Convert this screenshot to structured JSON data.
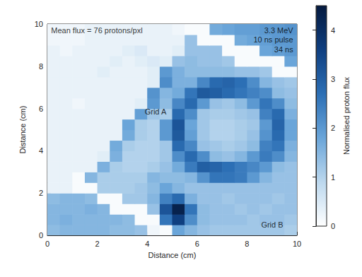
{
  "chart_data": {
    "type": "heatmap",
    "xlabel": "Distance (cm)",
    "ylabel": "Distance (cm)",
    "xlim": [
      0,
      10
    ],
    "ylim": [
      0,
      10
    ],
    "xticks": [
      0,
      2,
      4,
      6,
      8,
      10
    ],
    "yticks": [
      0,
      2,
      4,
      6,
      8,
      10
    ],
    "x": [
      0.25,
      0.75,
      1.25,
      1.75,
      2.25,
      2.75,
      3.25,
      3.75,
      4.25,
      4.75,
      5.25,
      5.75,
      6.25,
      6.75,
      7.25,
      7.75,
      8.25,
      8.75,
      9.25,
      9.75
    ],
    "y": [
      0.25,
      0.75,
      1.25,
      1.75,
      2.25,
      2.75,
      3.25,
      3.75,
      4.25,
      4.75,
      5.25,
      5.75,
      6.25,
      6.75,
      7.25,
      7.75,
      8.25,
      8.75,
      9.25,
      9.75
    ],
    "cells": [
      [
        1.4,
        1.5,
        1.5,
        1.5,
        1.5,
        1.4,
        1.4,
        1.3,
        0.2,
        0.1,
        1.8,
        1.5,
        1.3,
        1.2,
        1.2,
        1.2,
        1.2,
        1.2,
        1.2,
        1.1
      ],
      [
        1.5,
        1.6,
        1.5,
        1.5,
        1.5,
        1.5,
        1.4,
        0.1,
        0.1,
        2.6,
        3.6,
        2.2,
        1.4,
        1.3,
        1.3,
        1.3,
        1.2,
        1.3,
        1.3,
        1.2
      ],
      [
        1.5,
        1.5,
        1.5,
        1.6,
        1.5,
        0.1,
        0.1,
        0.1,
        1.3,
        3.2,
        4.3,
        2.6,
        1.4,
        1.3,
        1.3,
        1.2,
        1.3,
        1.2,
        1.3,
        1.3
      ],
      [
        1.4,
        1.5,
        1.5,
        1.4,
        0.1,
        0.1,
        1.2,
        1.2,
        1.5,
        2.4,
        2.8,
        1.6,
        1.3,
        1.3,
        1.2,
        1.3,
        1.3,
        1.3,
        1.2,
        1.3
      ],
      [
        0.3,
        0.3,
        0.1,
        0.1,
        1.1,
        1.1,
        1.1,
        1.2,
        1.4,
        1.8,
        1.5,
        1.3,
        1.3,
        1.3,
        1.3,
        1.3,
        1.3,
        1.3,
        1.3,
        1.3
      ],
      [
        0.3,
        0.3,
        0.1,
        1.5,
        1.1,
        1.1,
        1.1,
        1.1,
        1.5,
        1.4,
        1.4,
        1.5,
        2.1,
        2.6,
        2.6,
        2.5,
        2.0,
        1.5,
        1.3,
        1.3
      ],
      [
        0.3,
        0.3,
        0.3,
        0.3,
        1.6,
        1.1,
        1.0,
        1.0,
        1.1,
        1.3,
        1.7,
        2.5,
        3.0,
        2.9,
        2.7,
        2.5,
        2.3,
        2.0,
        1.4,
        1.3
      ],
      [
        0.3,
        0.3,
        0.3,
        0.3,
        0.4,
        1.6,
        1.0,
        1.0,
        1.0,
        1.2,
        2.2,
        2.8,
        2.2,
        1.4,
        1.3,
        1.5,
        2.0,
        2.5,
        2.2,
        1.5
      ],
      [
        0.3,
        0.3,
        0.3,
        0.3,
        0.3,
        1.7,
        1.1,
        1.0,
        1.0,
        1.2,
        2.8,
        2.3,
        1.3,
        1.2,
        1.1,
        1.2,
        1.4,
        2.4,
        2.6,
        1.6
      ],
      [
        0.3,
        0.3,
        0.3,
        0.3,
        0.3,
        0.3,
        1.7,
        1.1,
        1.0,
        2.0,
        3.1,
        1.9,
        1.2,
        1.0,
        1.0,
        1.1,
        1.3,
        2.1,
        2.8,
        1.8
      ],
      [
        0.3,
        0.3,
        0.3,
        0.3,
        0.3,
        0.3,
        1.8,
        1.1,
        1.0,
        2.0,
        3.2,
        1.8,
        1.2,
        1.0,
        1.0,
        1.1,
        1.2,
        2.0,
        2.9,
        1.8
      ],
      [
        0.3,
        0.3,
        0.3,
        0.3,
        0.3,
        0.3,
        0.3,
        1.9,
        1.2,
        1.1,
        2.8,
        2.2,
        1.2,
        1.1,
        1.1,
        1.2,
        1.3,
        2.4,
        2.8,
        1.6
      ],
      [
        0.3,
        0.3,
        0.2,
        0.3,
        0.3,
        0.3,
        0.3,
        0.4,
        2.0,
        1.4,
        2.3,
        2.8,
        2.0,
        1.3,
        1.2,
        1.4,
        2.0,
        2.6,
        2.2,
        1.4
      ],
      [
        0.3,
        0.3,
        0.3,
        0.3,
        0.3,
        0.3,
        0.3,
        0.3,
        2.1,
        1.5,
        1.7,
        2.6,
        3.1,
        3.0,
        2.8,
        2.6,
        2.4,
        2.2,
        1.4,
        1.3
      ],
      [
        0.3,
        0.3,
        0.3,
        0.3,
        0.3,
        0.3,
        0.3,
        0.3,
        0.4,
        2.2,
        1.6,
        1.6,
        2.3,
        2.8,
        2.9,
        2.7,
        2.2,
        1.5,
        1.3,
        1.2
      ],
      [
        0.3,
        0.3,
        0.3,
        0.3,
        0.4,
        0.3,
        0.3,
        0.3,
        0.4,
        2.0,
        1.6,
        1.4,
        1.4,
        1.4,
        1.4,
        1.3,
        1.3,
        1.2,
        0.1,
        0.1
      ],
      [
        0.3,
        0.3,
        0.3,
        0.3,
        0.3,
        0.4,
        0.3,
        0.4,
        0.5,
        0.4,
        1.3,
        1.4,
        1.3,
        1.3,
        1.2,
        0.1,
        0.1,
        0.1,
        0.1,
        1.8
      ],
      [
        0.3,
        0.2,
        0.3,
        0.3,
        0.3,
        0.3,
        0.4,
        0.5,
        0.3,
        0.3,
        0.4,
        1.3,
        1.3,
        1.3,
        0.1,
        0.1,
        0.1,
        1.8,
        1.9,
        2.0
      ],
      [
        0.2,
        0.2,
        0.2,
        0.3,
        0.3,
        0.3,
        0.3,
        0.3,
        0.3,
        0.3,
        0.3,
        1.3,
        0.1,
        0.1,
        0.1,
        1.7,
        1.8,
        1.9,
        2.0,
        2.0
      ],
      [
        0.2,
        0.2,
        0.2,
        0.3,
        0.3,
        0.3,
        0.3,
        0.3,
        0.3,
        0.3,
        0.2,
        0.1,
        0.1,
        1.7,
        1.8,
        1.9,
        1.9,
        2.0,
        2.0,
        2.1
      ]
    ],
    "colorbar": {
      "label": "Normalised proton flux",
      "lim": [
        0,
        4.5
      ],
      "ticks": [
        0,
        1,
        2,
        3,
        4
      ]
    },
    "annotations": [
      {
        "text": "Mean flux = 76 protons/pxl",
        "x": 0.15,
        "y": 9.7
      },
      {
        "text": "3.3 MeV",
        "x": 9.85,
        "y": 9.7
      },
      {
        "text": "10 ns pulse",
        "x": 9.85,
        "y": 9.25
      },
      {
        "text": "34 ns",
        "x": 9.85,
        "y": 8.8
      },
      {
        "text": "Grid A",
        "x": 3.9,
        "y": 5.85
      },
      {
        "text": "Grid B",
        "x": 9.45,
        "y": 0.5
      }
    ]
  }
}
